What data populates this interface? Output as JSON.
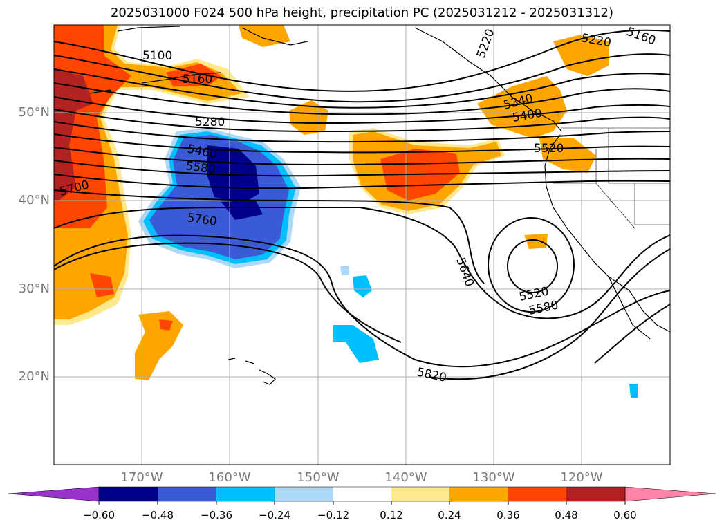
{
  "title": "2025031000 F024 500 hPa height, precipitation PC (2025031212 - 2025031312)",
  "lat_labels": [
    "50°N",
    "40°N",
    "30°N",
    "20°N"
  ],
  "lon_labels": [
    "170°W",
    "160°W",
    "150°W",
    "140°W",
    "130°W",
    "120°W"
  ],
  "colorbar": {
    "ticks": [
      "−0.60",
      "−0.48",
      "−0.36",
      "−0.24",
      "−0.12",
      "0.12",
      "0.24",
      "0.36",
      "0.48",
      "0.60"
    ],
    "colors": [
      "#9933cc",
      "#00008b",
      "#3b5bd6",
      "#00bfff",
      "#add8f6",
      "#ffffff",
      "#ffe98c",
      "#ffa500",
      "#ff4500",
      "#b22222",
      "#ff85a8"
    ]
  },
  "contour_labels": [
    "5100",
    "5160",
    "5160",
    "5220",
    "5220",
    "5280",
    "5340",
    "5400",
    "5460",
    "5520",
    "5580",
    "5700",
    "5760",
    "5640",
    "5520",
    "5580",
    "5820"
  ],
  "chart_data": {
    "type": "map",
    "lat_range": [
      10,
      60
    ],
    "lon_range": [
      -180,
      -110
    ],
    "variable": "500 hPa height contours with precipitation PC shading",
    "grid": true
  }
}
